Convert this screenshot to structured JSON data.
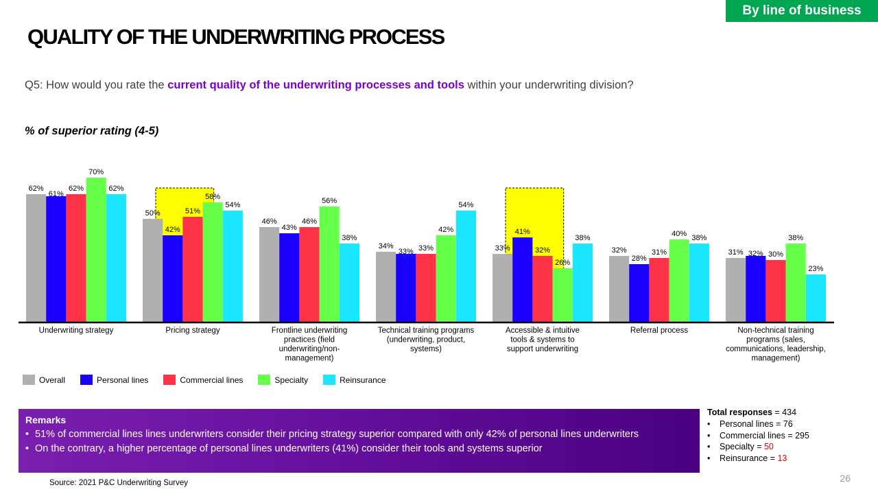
{
  "header": {
    "tag": "By line of business",
    "title": "QUALITY OF THE UNDERWRITING PROCESS",
    "question_prefix": "Q5: How would you rate the ",
    "question_highlight": "current quality of the underwriting processes and tools",
    "question_suffix": " within your underwriting division?",
    "subtitle": "% of superior rating (4-5)"
  },
  "chart_data": {
    "type": "bar",
    "ylim": [
      0,
      75
    ],
    "grid": false,
    "legend_position": "bottom-left",
    "categories": [
      [
        "Underwriting strategy"
      ],
      [
        "Pricing strategy"
      ],
      [
        "Frontline underwriting",
        "practices (field",
        "underwriting/non-",
        "management)"
      ],
      [
        "Technical training programs",
        "(underwriting, product,",
        "systems)"
      ],
      [
        "Accessible & intuitive",
        "tools & systems to",
        "support underwriting"
      ],
      [
        "Referral process"
      ],
      [
        "Non-technical training",
        "programs (sales,",
        "communications, leadership,",
        "management)"
      ]
    ],
    "series": [
      {
        "name": "Overall",
        "color": "#b0b0b0",
        "values": [
          62,
          50,
          46,
          34,
          33,
          32,
          31
        ]
      },
      {
        "name": "Personal lines",
        "color": "#1a00ff",
        "values": [
          61,
          42,
          43,
          33,
          41,
          28,
          32
        ]
      },
      {
        "name": "Commercial lines",
        "color": "#ff3348",
        "values": [
          62,
          51,
          46,
          33,
          32,
          31,
          30
        ]
      },
      {
        "name": "Specialty",
        "color": "#66ff4a",
        "values": [
          70,
          58,
          56,
          42,
          26,
          40,
          38
        ]
      },
      {
        "name": "Reinsurance",
        "color": "#1ae6ff",
        "values": [
          62,
          54,
          38,
          54,
          38,
          38,
          23
        ]
      }
    ],
    "value_suffix": "%",
    "highlighted_categories": [
      1,
      4
    ]
  },
  "remarks": {
    "heading": "Remarks",
    "items": [
      "51% of commercial lines lines underwriters  consider their pricing strategy superior compared with only 42% of personal lines underwriters",
      "On the contrary, a higher percentage of personal lines underwriters (41%) consider their tools and systems superior"
    ]
  },
  "totals": {
    "label": "Total responses",
    "value": "= 434",
    "items": [
      {
        "label": "Personal lines = ",
        "value": "76",
        "color": "#000000"
      },
      {
        "label": "Commercial lines = ",
        "value": "295",
        "color": "#000000"
      },
      {
        "label": "Specialty = ",
        "value": "50",
        "color": "#e00000"
      },
      {
        "label": "Reinsurance = ",
        "value": "13",
        "color": "#e00000"
      }
    ]
  },
  "footer": {
    "source": "Source: 2021 P&C Underwriting Survey",
    "page": "26"
  }
}
